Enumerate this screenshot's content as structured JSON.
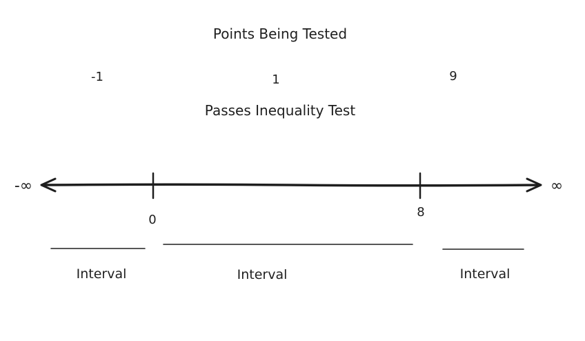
{
  "title": "Points Being Tested",
  "test_points": [
    "-1",
    "1",
    "9"
  ],
  "subtitle": "Passes Inequality Test",
  "number_line": {
    "left_end": "-∞",
    "right_end": "∞",
    "boundaries": [
      "0",
      "8"
    ]
  },
  "intervals": [
    "Interval",
    "Interval",
    "Interval"
  ]
}
